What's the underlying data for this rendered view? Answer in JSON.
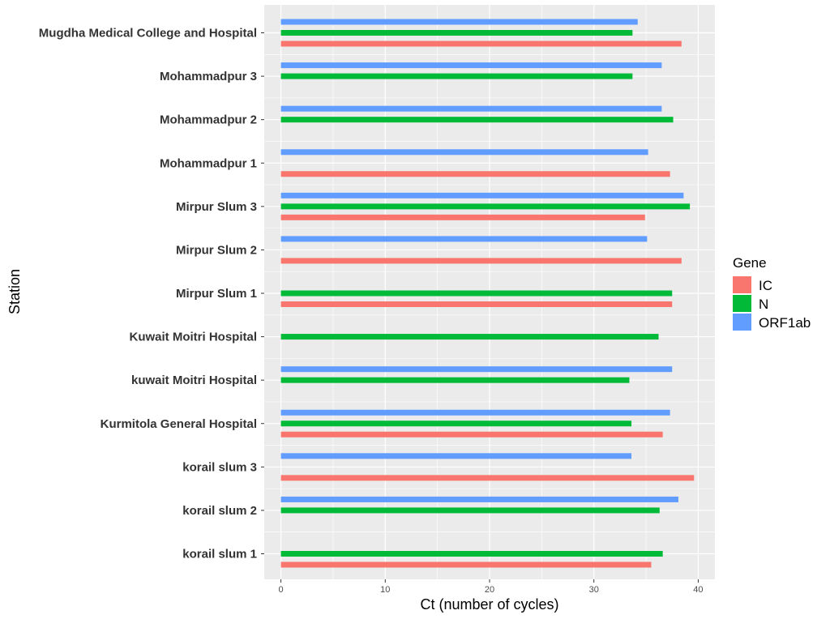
{
  "chart_data": {
    "type": "bar",
    "orientation": "horizontal",
    "xlabel": "Ct (number of cycles)",
    "ylabel": "Station",
    "xlim": [
      -1.6,
      41.6
    ],
    "xticks": [
      0,
      10,
      20,
      30,
      40
    ],
    "grid": true,
    "legend": {
      "title": "Gene",
      "position": "right"
    },
    "categories": [
      "korail slum 1",
      "korail slum 2",
      "korail slum 3",
      "Kurmitola General Hospital",
      "kuwait Moitri Hospital",
      "Kuwait Moitri Hospital",
      "Mirpur Slum 1",
      "Mirpur Slum 2",
      "Mirpur Slum 3",
      "Mohammadpur 1",
      "Mohammadpur 2",
      "Mohammadpur 3",
      "Mugdha Medical College and Hospital"
    ],
    "series": [
      {
        "name": "IC",
        "color": "#F8766D",
        "values": [
          35.5,
          null,
          39.6,
          36.6,
          null,
          null,
          37.5,
          38.4,
          34.9,
          37.3,
          null,
          null,
          38.4
        ]
      },
      {
        "name": "N",
        "color": "#00BA38",
        "values": [
          36.6,
          36.3,
          null,
          33.6,
          33.4,
          36.2,
          37.5,
          null,
          39.2,
          null,
          37.6,
          33.7,
          33.7
        ]
      },
      {
        "name": "ORF1ab",
        "color": "#619CFF",
        "values": [
          null,
          38.1,
          33.6,
          37.3,
          37.5,
          null,
          null,
          35.1,
          38.6,
          35.2,
          36.5,
          36.5,
          34.2
        ]
      }
    ]
  }
}
